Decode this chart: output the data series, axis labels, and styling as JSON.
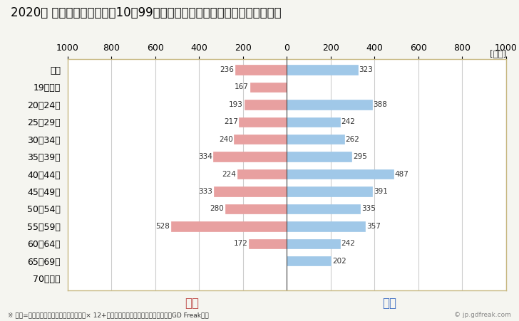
{
  "title": "2020年 民間企業（従業者数10〜99人）フルタイム労働者の男女別平均年収",
  "footnote": "※ 年収=「きまって支給する現金給与額」× 12+「年間賞与その他特別給与額」としてGD Freak推計",
  "watermark": "© jp.gdfreak.com",
  "ylabel_unit": "[万円]",
  "categories": [
    "全体",
    "19歳以下",
    "20〜24歳",
    "25〜29歳",
    "30〜34歳",
    "35〜39歳",
    "40〜44歳",
    "45〜49歳",
    "50〜54歳",
    "55〜59歳",
    "60〜64歳",
    "65〜69歳",
    "70歳以上"
  ],
  "female_values": [
    236,
    167,
    193,
    217,
    240,
    334,
    224,
    333,
    280,
    528,
    172,
    0,
    0
  ],
  "male_values": [
    323,
    0,
    388,
    242,
    262,
    295,
    487,
    391,
    335,
    357,
    242,
    202,
    0
  ],
  "female_color": "#E8A0A0",
  "male_color": "#A0C8E8",
  "female_label": "女性",
  "male_label": "男性",
  "female_label_color": "#C0504D",
  "male_label_color": "#4472C4",
  "xlim": 1000,
  "background_color": "#F5F5F0",
  "plot_bg_color": "#FFFFFF",
  "title_fontsize": 12,
  "axis_fontsize": 9,
  "bar_height": 0.55,
  "grid_color": "#CCCCCC",
  "border_color": "#C8B882"
}
